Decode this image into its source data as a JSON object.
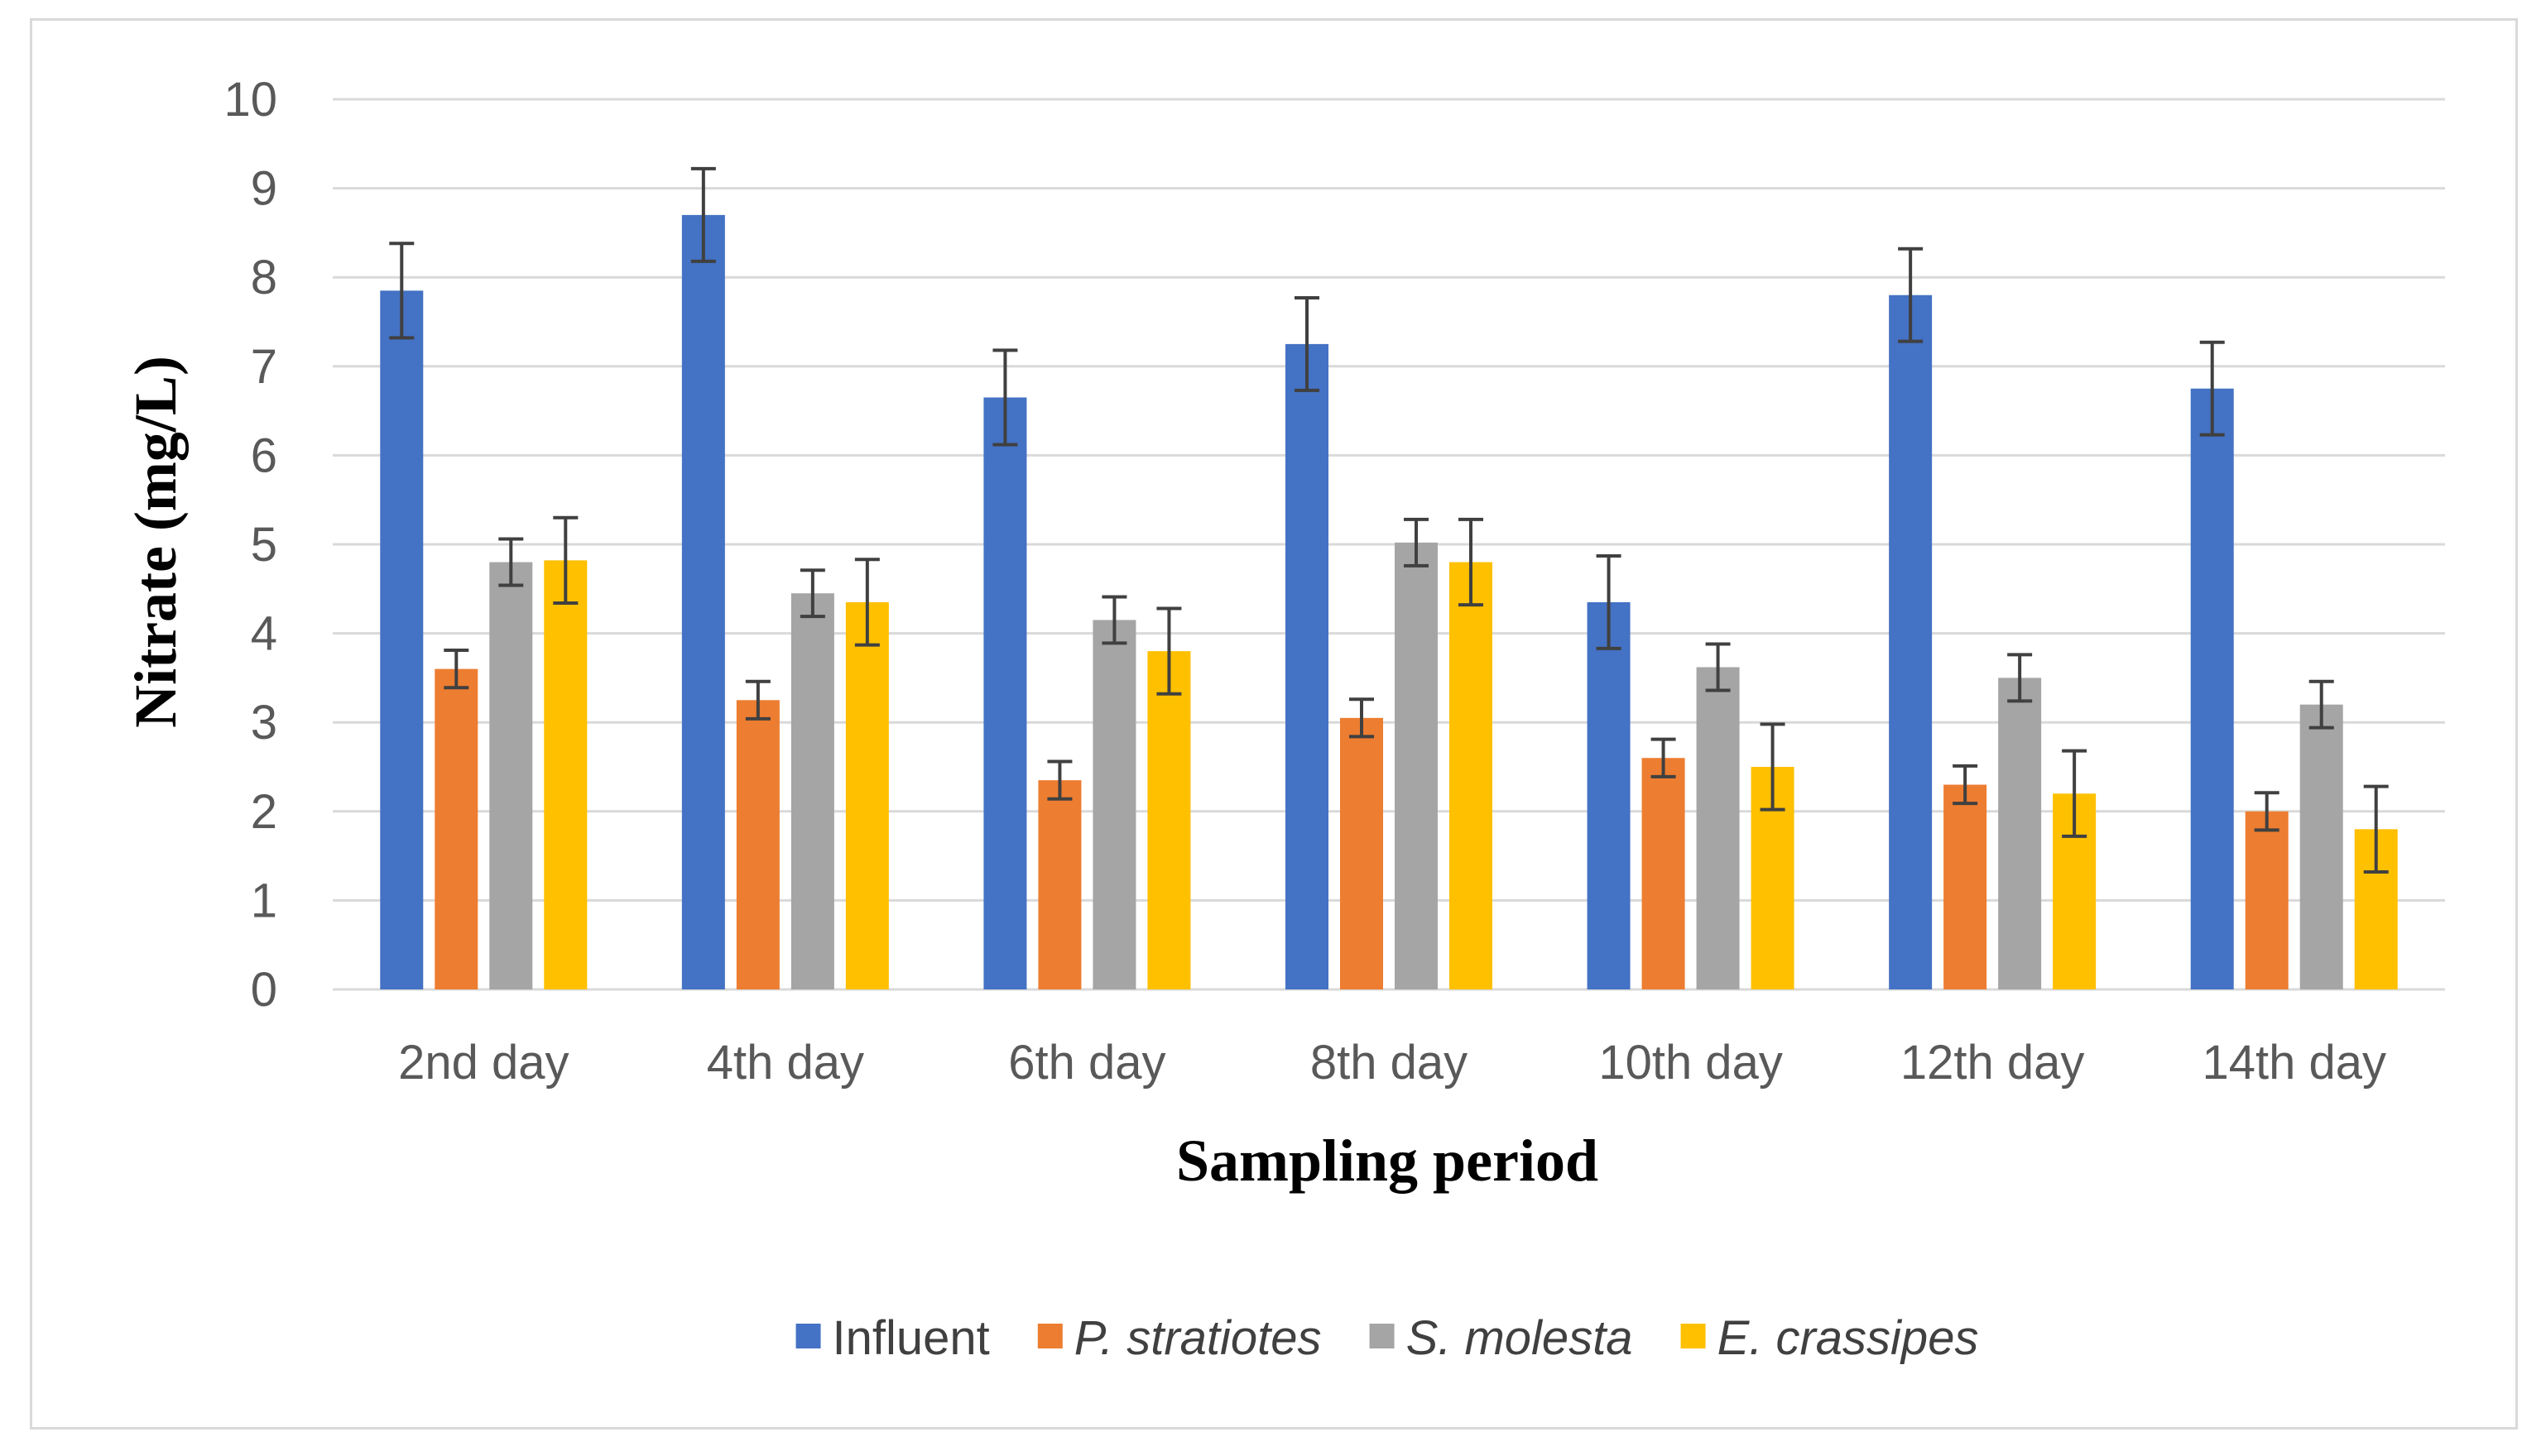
{
  "chart_data": {
    "type": "bar",
    "title": "",
    "xlabel": "Sampling period",
    "ylabel": "Nitrate (mg/L)",
    "ylim": [
      0,
      10
    ],
    "yticks": [
      0,
      1,
      2,
      3,
      4,
      5,
      6,
      7,
      8,
      9,
      10
    ],
    "grid": true,
    "legend_position": "bottom",
    "categories": [
      "2nd day",
      "4th day",
      "6th day",
      "8th day",
      "10th day",
      "12th day",
      "14th day"
    ],
    "series": [
      {
        "name": "Influent",
        "italic": false,
        "color": "#4472c4",
        "values": [
          7.85,
          8.7,
          6.65,
          7.25,
          4.35,
          7.8,
          6.75
        ],
        "error": [
          0.53,
          0.52,
          0.53,
          0.52,
          0.52,
          0.52,
          0.52
        ]
      },
      {
        "name": "P. stratiotes",
        "italic": true,
        "color": "#ed7d31",
        "values": [
          3.6,
          3.25,
          2.35,
          3.05,
          2.6,
          2.3,
          2.0
        ],
        "error": [
          0.21,
          0.21,
          0.21,
          0.21,
          0.21,
          0.21,
          0.21
        ]
      },
      {
        "name": "S. molesta",
        "italic": true,
        "color": "#a5a5a5",
        "values": [
          4.8,
          4.45,
          4.15,
          5.02,
          3.62,
          3.5,
          3.2
        ],
        "error": [
          0.26,
          0.26,
          0.26,
          0.26,
          0.26,
          0.26,
          0.26
        ]
      },
      {
        "name": "E. crassipes",
        "italic": true,
        "color": "#ffc000",
        "values": [
          4.82,
          4.35,
          3.8,
          4.8,
          2.5,
          2.2,
          1.8
        ],
        "error": [
          0.48,
          0.48,
          0.48,
          0.48,
          0.48,
          0.48,
          0.48
        ]
      }
    ],
    "gridline_color": "#d9d9d9",
    "errorbar_color": "#404040"
  }
}
